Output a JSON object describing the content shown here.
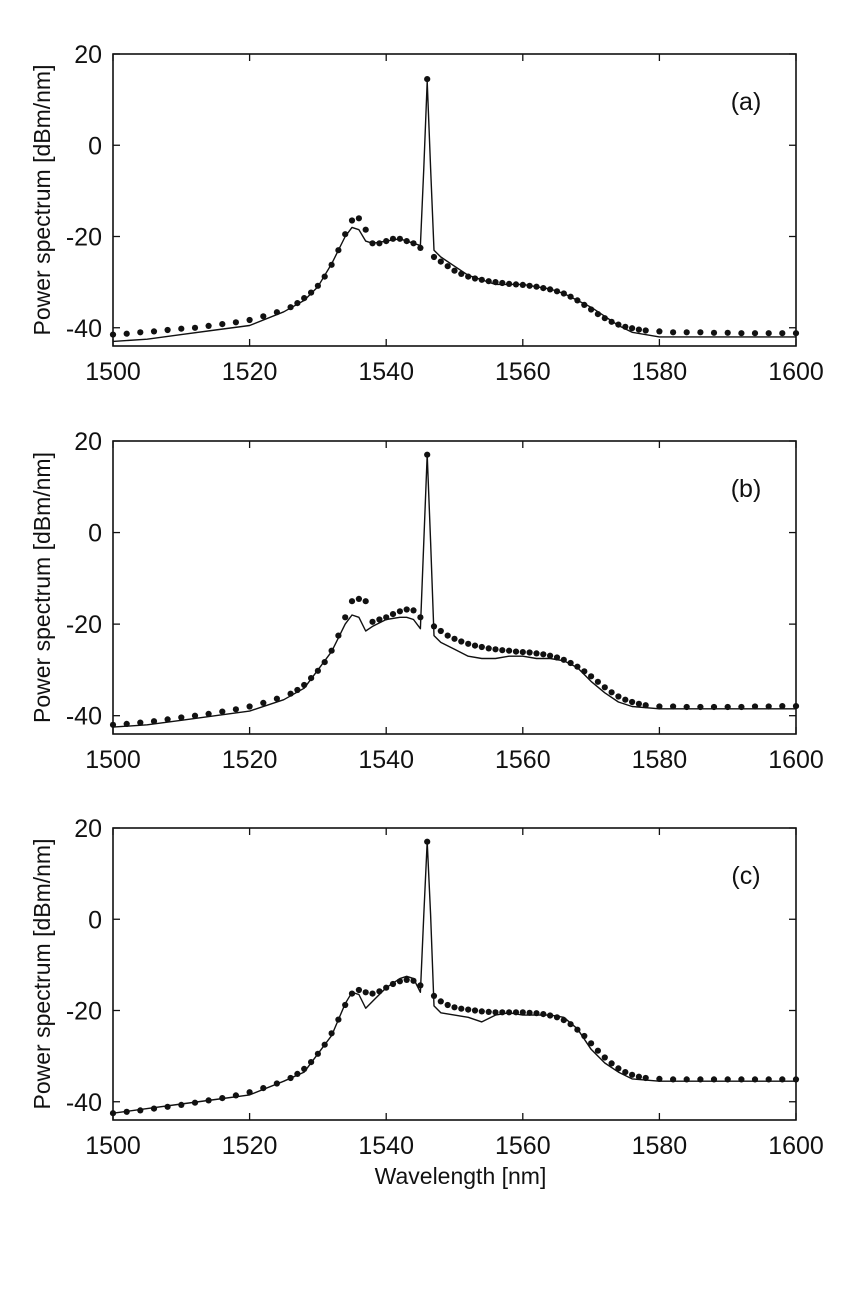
{
  "chart_data": [
    {
      "type": "line",
      "panel_label": "(a)",
      "xlabel": "",
      "ylabel": "Power spectrum [dBm/nm]",
      "xlim": [
        1500,
        1600
      ],
      "ylim": [
        -44,
        20
      ],
      "xticks": [
        1500,
        1520,
        1540,
        1560,
        1580,
        1600
      ],
      "yticks": [
        -40,
        -20,
        0,
        20
      ],
      "grid": false,
      "series": [
        {
          "style": "solid-line",
          "x": [
            1500,
            1505,
            1510,
            1515,
            1520,
            1525,
            1528,
            1530,
            1532,
            1534,
            1535,
            1536,
            1537,
            1538,
            1540,
            1542,
            1543,
            1544,
            1545,
            1545.5,
            1546,
            1546.5,
            1547,
            1548,
            1550,
            1552,
            1554,
            1556,
            1558,
            1560,
            1562,
            1564,
            1566,
            1568,
            1570,
            1572,
            1574,
            1576,
            1580,
            1590,
            1600
          ],
          "y": [
            -43,
            -42.5,
            -41.5,
            -40.5,
            -39.5,
            -36.5,
            -34,
            -31,
            -26,
            -20,
            -18,
            -18.5,
            -21,
            -21.5,
            -21,
            -20.5,
            -21,
            -21.5,
            -22,
            -5,
            14,
            -5,
            -23,
            -24.5,
            -26.5,
            -28.5,
            -29.5,
            -30.5,
            -30.5,
            -30.5,
            -31,
            -31.5,
            -32.5,
            -34,
            -35.5,
            -37.5,
            -39.5,
            -41,
            -42,
            -42,
            -42
          ]
        },
        {
          "style": "dots",
          "x": [
            1500,
            1502,
            1504,
            1506,
            1508,
            1510,
            1512,
            1514,
            1516,
            1518,
            1520,
            1522,
            1524,
            1526,
            1527,
            1528,
            1529,
            1530,
            1531,
            1532,
            1533,
            1534,
            1535,
            1536,
            1537,
            1538,
            1539,
            1540,
            1541,
            1542,
            1543,
            1544,
            1545,
            1546,
            1547,
            1548,
            1549,
            1550,
            1551,
            1552,
            1553,
            1554,
            1555,
            1556,
            1557,
            1558,
            1559,
            1560,
            1561,
            1562,
            1563,
            1564,
            1565,
            1566,
            1567,
            1568,
            1569,
            1570,
            1571,
            1572,
            1573,
            1574,
            1575,
            1576,
            1577,
            1578,
            1580,
            1582,
            1584,
            1586,
            1588,
            1590,
            1592,
            1594,
            1596,
            1598,
            1600
          ],
          "y": [
            -41.5,
            -41.3,
            -41,
            -40.8,
            -40.5,
            -40.2,
            -40,
            -39.6,
            -39.2,
            -38.8,
            -38.3,
            -37.5,
            -36.6,
            -35.5,
            -34.6,
            -33.5,
            -32.3,
            -30.8,
            -28.8,
            -26.2,
            -23,
            -19.5,
            -16.5,
            -16,
            -18.5,
            -21.5,
            -21.5,
            -21,
            -20.5,
            -20.5,
            -21,
            -21.5,
            -22.5,
            14.5,
            -24.5,
            -25.5,
            -26.5,
            -27.5,
            -28.2,
            -28.8,
            -29.2,
            -29.5,
            -29.8,
            -30,
            -30.2,
            -30.4,
            -30.5,
            -30.6,
            -30.8,
            -31,
            -31.3,
            -31.6,
            -32,
            -32.5,
            -33.2,
            -34,
            -35,
            -36,
            -37,
            -37.9,
            -38.7,
            -39.3,
            -39.8,
            -40.1,
            -40.4,
            -40.6,
            -40.8,
            -41,
            -41,
            -41,
            -41.1,
            -41.1,
            -41.2,
            -41.2,
            -41.2,
            -41.2,
            -41.2
          ]
        }
      ]
    },
    {
      "type": "line",
      "panel_label": "(b)",
      "xlabel": "",
      "ylabel": "Power spectrum [dBm/nm]",
      "xlim": [
        1500,
        1600
      ],
      "ylim": [
        -44,
        20
      ],
      "xticks": [
        1500,
        1520,
        1540,
        1560,
        1580,
        1600
      ],
      "yticks": [
        -40,
        -20,
        0,
        20
      ],
      "grid": false,
      "series": [
        {
          "style": "solid-line",
          "x": [
            1500,
            1505,
            1510,
            1515,
            1520,
            1525,
            1528,
            1530,
            1532,
            1534,
            1535,
            1536,
            1537,
            1538,
            1540,
            1542,
            1543,
            1544,
            1545,
            1545.5,
            1546,
            1546.5,
            1547,
            1548,
            1550,
            1552,
            1554,
            1556,
            1558,
            1560,
            1562,
            1564,
            1566,
            1568,
            1570,
            1572,
            1574,
            1576,
            1580,
            1590,
            1600
          ],
          "y": [
            -42.5,
            -42,
            -41,
            -40,
            -39,
            -36.5,
            -34,
            -30,
            -26,
            -20,
            -18,
            -18.5,
            -21.5,
            -20.5,
            -19,
            -18.5,
            -18.5,
            -19,
            -21,
            -2,
            17,
            -2,
            -22.5,
            -24,
            -25.5,
            -27,
            -27.5,
            -27.5,
            -27,
            -27,
            -27.5,
            -27.5,
            -28,
            -29.5,
            -32.5,
            -35,
            -37,
            -38,
            -38.5,
            -38.5,
            -38.5
          ]
        },
        {
          "style": "dots",
          "x": [
            1500,
            1502,
            1504,
            1506,
            1508,
            1510,
            1512,
            1514,
            1516,
            1518,
            1520,
            1522,
            1524,
            1526,
            1527,
            1528,
            1529,
            1530,
            1531,
            1532,
            1533,
            1534,
            1535,
            1536,
            1537,
            1538,
            1539,
            1540,
            1541,
            1542,
            1543,
            1544,
            1545,
            1546,
            1547,
            1548,
            1549,
            1550,
            1551,
            1552,
            1553,
            1554,
            1555,
            1556,
            1557,
            1558,
            1559,
            1560,
            1561,
            1562,
            1563,
            1564,
            1565,
            1566,
            1567,
            1568,
            1569,
            1570,
            1571,
            1572,
            1573,
            1574,
            1575,
            1576,
            1577,
            1578,
            1580,
            1582,
            1584,
            1586,
            1588,
            1590,
            1592,
            1594,
            1596,
            1598,
            1600
          ],
          "y": [
            -42,
            -41.8,
            -41.5,
            -41.2,
            -40.8,
            -40.4,
            -40,
            -39.6,
            -39.1,
            -38.6,
            -38,
            -37.2,
            -36.3,
            -35.2,
            -34.4,
            -33.3,
            -31.8,
            -30.2,
            -28.3,
            -25.8,
            -22.5,
            -18.5,
            -15,
            -14.5,
            -15,
            -19.5,
            -19,
            -18.5,
            -17.8,
            -17.2,
            -16.8,
            -17,
            -18.5,
            17,
            -20.5,
            -21.5,
            -22.5,
            -23.2,
            -23.8,
            -24.3,
            -24.7,
            -25,
            -25.3,
            -25.5,
            -25.7,
            -25.8,
            -26,
            -26.1,
            -26.2,
            -26.4,
            -26.6,
            -26.9,
            -27.3,
            -27.8,
            -28.5,
            -29.3,
            -30.3,
            -31.4,
            -32.6,
            -33.8,
            -34.9,
            -35.8,
            -36.5,
            -37,
            -37.4,
            -37.7,
            -38,
            -38,
            -38.1,
            -38.1,
            -38.1,
            -38.1,
            -38.1,
            -38,
            -38,
            -37.9,
            -37.9
          ]
        }
      ]
    },
    {
      "type": "line",
      "panel_label": "(c)",
      "xlabel": "Wavelength [nm]",
      "ylabel": "Power spectrum [dBm/nm]",
      "xlim": [
        1500,
        1600
      ],
      "ylim": [
        -44,
        20
      ],
      "xticks": [
        1500,
        1520,
        1540,
        1560,
        1580,
        1600
      ],
      "yticks": [
        -40,
        -20,
        0,
        20
      ],
      "grid": false,
      "series": [
        {
          "style": "solid-line",
          "x": [
            1500,
            1505,
            1510,
            1515,
            1520,
            1525,
            1528,
            1530,
            1532,
            1534,
            1535,
            1536,
            1537,
            1538,
            1540,
            1542,
            1543,
            1544,
            1545,
            1545.5,
            1546,
            1546.5,
            1547,
            1548,
            1550,
            1552,
            1554,
            1556,
            1558,
            1560,
            1562,
            1564,
            1566,
            1568,
            1570,
            1572,
            1574,
            1576,
            1580,
            1590,
            1600
          ],
          "y": [
            -42.5,
            -41.5,
            -40.5,
            -39.5,
            -38.5,
            -35.5,
            -33.5,
            -29.5,
            -25.5,
            -18.5,
            -16,
            -16.5,
            -19.5,
            -18,
            -15,
            -13,
            -12.5,
            -13,
            -16,
            1,
            17,
            1,
            -19,
            -20.5,
            -21,
            -21.5,
            -22.5,
            -21,
            -20.5,
            -21,
            -21,
            -21,
            -21.5,
            -24,
            -28.5,
            -31.5,
            -33.5,
            -35,
            -35.5,
            -35.5,
            -35.5
          ]
        },
        {
          "style": "dots",
          "x": [
            1500,
            1502,
            1504,
            1506,
            1508,
            1510,
            1512,
            1514,
            1516,
            1518,
            1520,
            1522,
            1524,
            1526,
            1527,
            1528,
            1529,
            1530,
            1531,
            1532,
            1533,
            1534,
            1535,
            1536,
            1537,
            1538,
            1539,
            1540,
            1541,
            1542,
            1543,
            1544,
            1545,
            1546,
            1547,
            1548,
            1549,
            1550,
            1551,
            1552,
            1553,
            1554,
            1555,
            1556,
            1557,
            1558,
            1559,
            1560,
            1561,
            1562,
            1563,
            1564,
            1565,
            1566,
            1567,
            1568,
            1569,
            1570,
            1571,
            1572,
            1573,
            1574,
            1575,
            1576,
            1577,
            1578,
            1580,
            1582,
            1584,
            1586,
            1588,
            1590,
            1592,
            1594,
            1596,
            1598,
            1600
          ],
          "y": [
            -42.5,
            -42.2,
            -41.9,
            -41.5,
            -41.1,
            -40.7,
            -40.2,
            -39.7,
            -39.2,
            -38.6,
            -37.9,
            -37,
            -36,
            -34.8,
            -33.9,
            -32.8,
            -31.3,
            -29.5,
            -27.5,
            -25,
            -22,
            -18.8,
            -16.3,
            -15.5,
            -16,
            -16.3,
            -15.8,
            -15,
            -14.2,
            -13.6,
            -13.3,
            -13.5,
            -14.5,
            17,
            -16.8,
            -18,
            -18.8,
            -19.3,
            -19.6,
            -19.8,
            -20,
            -20.2,
            -20.3,
            -20.4,
            -20.4,
            -20.4,
            -20.4,
            -20.4,
            -20.5,
            -20.6,
            -20.8,
            -21.1,
            -21.5,
            -22.1,
            -23,
            -24.2,
            -25.6,
            -27.2,
            -28.8,
            -30.3,
            -31.6,
            -32.7,
            -33.5,
            -34.1,
            -34.5,
            -34.8,
            -35,
            -35.1,
            -35.1,
            -35.1,
            -35.1,
            -35.1,
            -35.1,
            -35.1,
            -35.1,
            -35.1,
            -35.1
          ]
        }
      ]
    }
  ]
}
